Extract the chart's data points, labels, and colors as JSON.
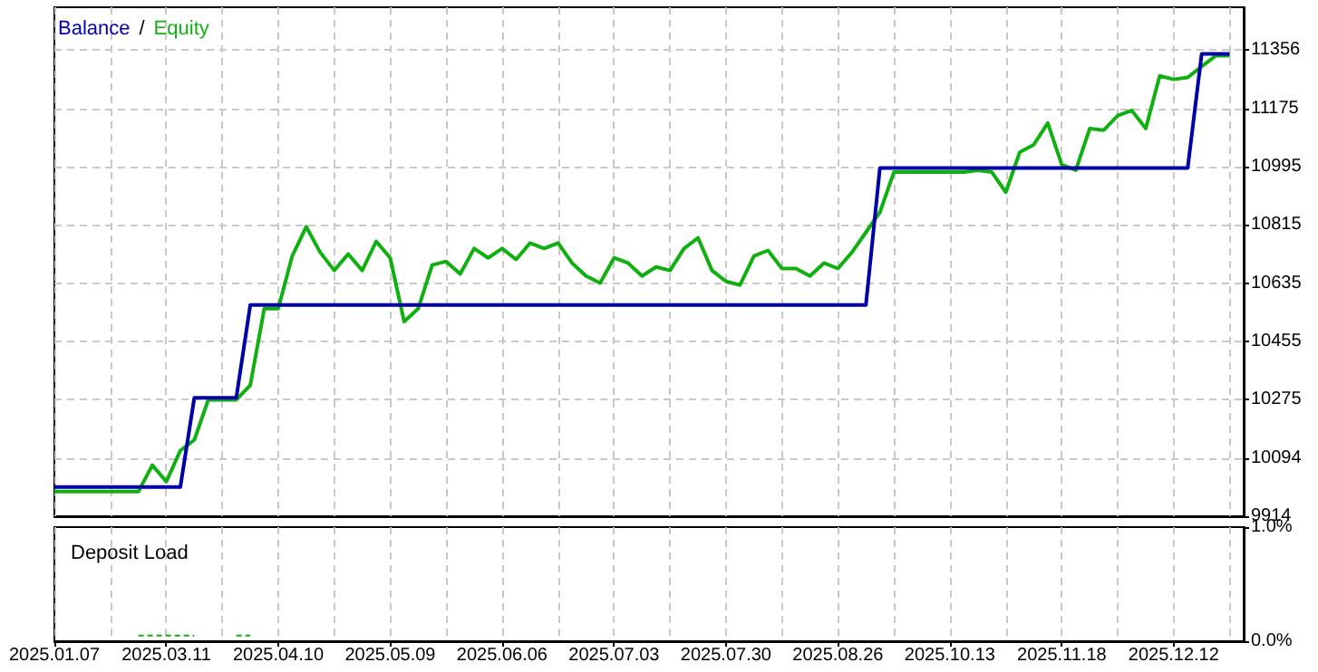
{
  "chart_data": [
    {
      "type": "line",
      "categories": [
        "2025.01.07",
        null,
        null,
        null,
        null,
        null,
        null,
        null,
        "2025.03.11",
        null,
        null,
        null,
        null,
        null,
        null,
        null,
        "2025.04.10",
        null,
        null,
        null,
        null,
        null,
        null,
        null,
        "2025.05.09",
        null,
        null,
        null,
        null,
        null,
        null,
        null,
        "2025.06.06",
        null,
        null,
        null,
        null,
        null,
        null,
        null,
        "2025.07.03",
        null,
        null,
        null,
        null,
        null,
        null,
        null,
        "2025.07.30",
        null,
        null,
        null,
        null,
        null,
        null,
        null,
        "2025.08.26",
        null,
        null,
        null,
        null,
        null,
        null,
        null,
        "2025.10.13",
        null,
        null,
        null,
        null,
        null,
        null,
        null,
        "2025.11.18",
        null,
        null,
        null,
        null,
        null,
        null,
        null,
        "2025.12.12",
        null,
        null,
        null,
        null,
        null
      ],
      "series": [
        {
          "name": "Balance",
          "color": "#0000a8",
          "values": [
            10004,
            10004,
            10004,
            10004,
            10004,
            10004,
            10004,
            10004,
            10004,
            10004,
            10280,
            10280,
            10280,
            10280,
            10567,
            10567,
            10567,
            10567,
            10567,
            10567,
            10567,
            10567,
            10567,
            10567,
            10567,
            10567,
            10567,
            10567,
            10567,
            10567,
            10567,
            10567,
            10567,
            10567,
            10567,
            10567,
            10567,
            10567,
            10567,
            10567,
            10567,
            10567,
            10567,
            10567,
            10567,
            10567,
            10567,
            10567,
            10567,
            10567,
            10567,
            10567,
            10567,
            10567,
            10567,
            10567,
            10567,
            10567,
            10567,
            10991,
            10991,
            10991,
            10991,
            10991,
            10991,
            10991,
            10991,
            10991,
            10991,
            10991,
            10991,
            10991,
            10991,
            10991,
            10991,
            10991,
            10991,
            10991,
            10991,
            10991,
            10991,
            10991,
            11344,
            11344,
            11344,
            null
          ]
        },
        {
          "name": "Equity",
          "color": "#10b010",
          "values": [
            9990,
            9990,
            9990,
            9990,
            9990,
            9990,
            9990,
            10072,
            10021,
            10117,
            10150,
            10274,
            10274,
            10274,
            10319,
            10556,
            10556,
            10719,
            10809,
            10730,
            10674,
            10725,
            10674,
            10764,
            10713,
            10516,
            10556,
            10691,
            10702,
            10663,
            10742,
            10713,
            10742,
            10708,
            10759,
            10742,
            10759,
            10697,
            10657,
            10635,
            10713,
            10697,
            10657,
            10685,
            10674,
            10742,
            10775,
            10674,
            10640,
            10629,
            10719,
            10736,
            10680,
            10680,
            10657,
            10697,
            10680,
            10730,
            10792,
            10854,
            10978,
            10978,
            10978,
            10978,
            10978,
            10978,
            10984,
            10978,
            10916,
            11040,
            11063,
            11130,
            11001,
            10984,
            11113,
            11108,
            11153,
            11169,
            11113,
            11276,
            11265,
            11271,
            11305,
            11338,
            11338,
            null
          ]
        }
      ],
      "ylim": [
        9914,
        11488
      ],
      "yticks": [
        9914,
        10094,
        10275,
        10455,
        10635,
        10815,
        10995,
        11175,
        11356
      ],
      "grid": true,
      "legend": "top left",
      "tick_labels": "y",
      "annotations": [
        "/"
      ]
    },
    {
      "type": "line",
      "title": "Deposit Load",
      "categories": [
        "2025.01.07",
        null,
        null,
        null,
        null,
        null,
        null,
        null,
        "2025.03.11",
        null,
        null,
        null,
        null,
        null,
        null,
        null,
        "2025.04.10",
        null,
        null,
        null,
        null,
        null,
        null,
        null,
        "2025.05.09",
        null,
        null,
        null,
        null,
        null,
        null,
        null,
        "2025.06.06",
        null,
        null,
        null,
        null,
        null,
        null,
        null,
        "2025.07.03",
        null,
        null,
        null,
        null,
        null,
        null,
        null,
        "2025.07.30",
        null,
        null,
        null,
        null,
        null,
        null,
        null,
        "2025.08.26",
        null,
        null,
        null,
        null,
        null,
        null,
        null,
        "2025.10.13",
        null,
        null,
        null,
        null,
        null,
        null,
        null,
        "2025.11.18",
        null,
        null,
        null,
        null,
        null,
        null,
        null,
        "2025.12.12",
        null,
        null,
        null,
        null,
        null
      ],
      "series": [
        {
          "color": "#10b010",
          "values": [
            null,
            null,
            null,
            null,
            null,
            null,
            0.05,
            0.05,
            0.05,
            0.05,
            0.05,
            null,
            null,
            0.05,
            0.05,
            null,
            null,
            null,
            null,
            null,
            null,
            null,
            null,
            null,
            null,
            null,
            null,
            null,
            null,
            null,
            null,
            null,
            null,
            null,
            null,
            null,
            null,
            null,
            null,
            null,
            null,
            null,
            null,
            null,
            null,
            null,
            null,
            null,
            null,
            null,
            null,
            null,
            null,
            null,
            null,
            null,
            null,
            null,
            null,
            null,
            null,
            null,
            null,
            null,
            null,
            null,
            null,
            null,
            null,
            null,
            null,
            null,
            null,
            null,
            null,
            null,
            null,
            null,
            null,
            null,
            null,
            null,
            null,
            null,
            null,
            null
          ]
        }
      ],
      "ylim": [
        0,
        1
      ],
      "yticks": [
        {
          "value": 0,
          "label": "0.0%"
        },
        {
          "value": 1,
          "label": "1.0%"
        }
      ],
      "grid": "x",
      "line_style": "dashed"
    }
  ]
}
